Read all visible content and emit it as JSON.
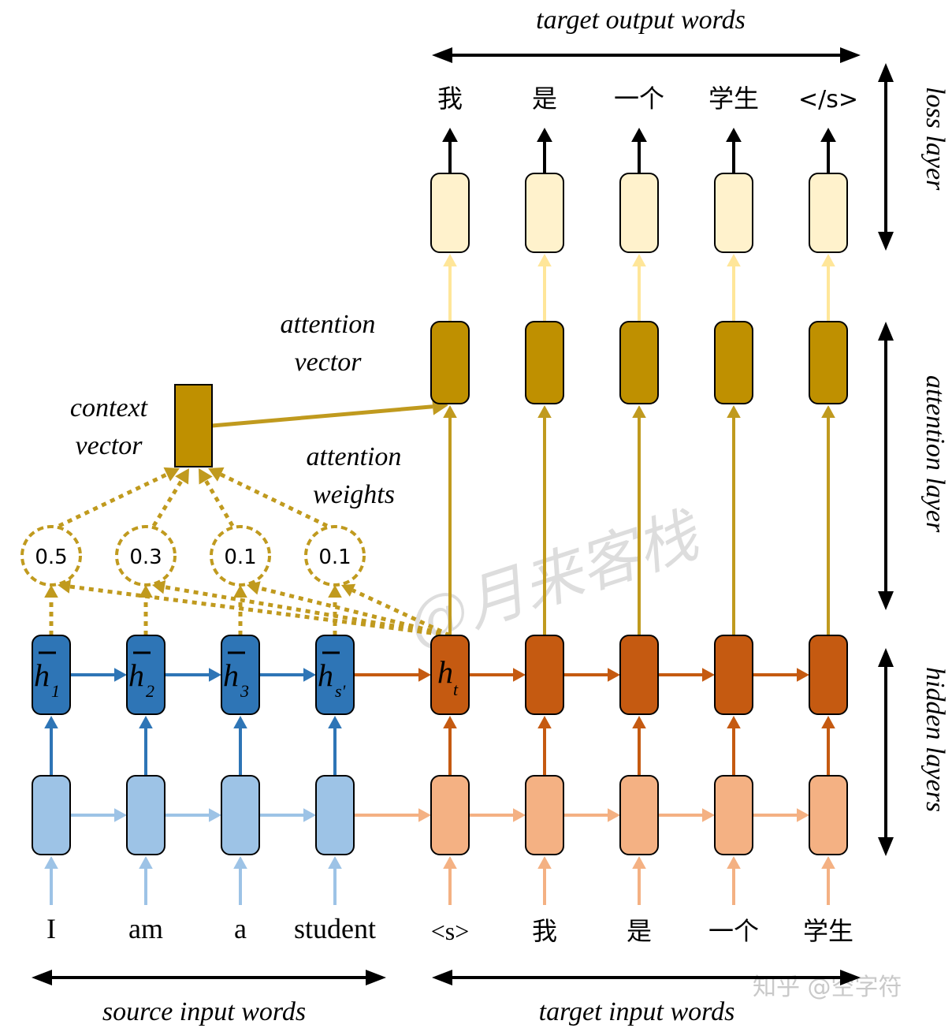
{
  "labels": {
    "target_output_words": "target output words",
    "loss_layer": "loss layer",
    "attention_layer": "attention layer",
    "hidden_layers": "hidden layers",
    "attention_vector_line1": "attention",
    "attention_vector_line2": "vector",
    "context_vector_line1": "context",
    "context_vector_line2": "vector",
    "attention_weights_line1": "attention",
    "attention_weights_line2": "weights",
    "source_input_words": "source input words",
    "target_input_words": "target input words"
  },
  "target_output": [
    "我",
    "是",
    "一个",
    "学生",
    "</s>"
  ],
  "source_input": [
    "I",
    "am",
    "a",
    "student"
  ],
  "target_input": [
    "<s>",
    "我",
    "是",
    "一个",
    "学生"
  ],
  "encoder_hidden": [
    {
      "sym": "h",
      "sub": "1"
    },
    {
      "sym": "h",
      "sub": "2"
    },
    {
      "sym": "h",
      "sub": "3"
    },
    {
      "sym": "h",
      "sub": "s'"
    }
  ],
  "decoder_hidden_first": {
    "sym": "h",
    "sub": "t"
  },
  "attention_weights": [
    "0.5",
    "0.3",
    "0.1",
    "0.1"
  ],
  "watermark": {
    "text": "知乎 @空字符",
    "script": "@月来客栈"
  },
  "colors": {
    "encoder_input": "#9dc3e6",
    "encoder_hidden": "#2e75b6",
    "decoder_input": "#f4b183",
    "decoder_hidden": "#c55a11",
    "attention": "#bf9000",
    "attention_arrow": "#c09a1e",
    "loss": "#fff2cc",
    "loss_arrow": "#ffe699",
    "black": "#000000"
  }
}
